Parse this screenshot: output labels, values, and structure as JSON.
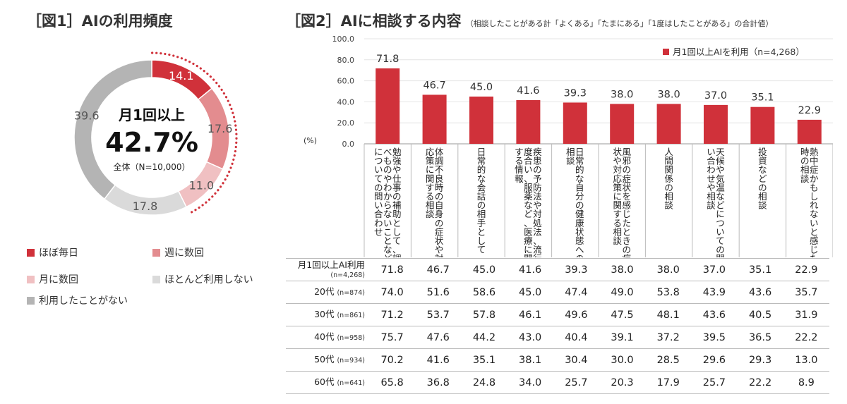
{
  "figure1": {
    "title": "［図1］AIの利用頻度",
    "center_line1": "月1回以上",
    "center_value": "42.7%",
    "center_note": "全体（N=10,000）",
    "legend": [
      {
        "label": "ほぼ毎日",
        "color": "#d0313a"
      },
      {
        "label": "週に数回",
        "color": "#e38c8f"
      },
      {
        "label": "月に数回",
        "color": "#f0c0c2"
      },
      {
        "label": "ほとんど利用しない",
        "color": "#dadada"
      },
      {
        "label": "利用したことがない",
        "color": "#b4b4b4"
      }
    ]
  },
  "figure2": {
    "title": "［図2］AIに相談する内容",
    "note": "（相談したことがある計「よくある」「たまにある」「1度はしたことがある」の合計値）",
    "legend_label": "月1回以上AIを利用（n=4,268）",
    "unit_label": "(%)",
    "bar_color": "#d0313a"
  },
  "chart_data": [
    {
      "type": "pie",
      "labels": [
        "ほぼ毎日",
        "週に数回",
        "月に数回",
        "ほとんど利用しない",
        "利用したことがない"
      ],
      "values": [
        14.1,
        17.6,
        11.0,
        17.8,
        39.6
      ],
      "colors": [
        "#d0313a",
        "#e38c8f",
        "#f0c0c2",
        "#dadada",
        "#b4b4b4"
      ],
      "donut": true,
      "legend_position": "bottom"
    },
    {
      "type": "bar",
      "categories": [
        "勉強や仕事の補助として、調べものやわからないことなどについての問い合わせ",
        "体調不良時の自身の症状や対応策に関する相談",
        "日常的な会話の相手として",
        "疾患の予防法や対処法、流行度合い、服薬など、医療に関する情報",
        "日常的な自分の健康状態への相談",
        "風邪の症状を感じたときの症状や対応策に関する相談",
        "人間関係の相談",
        "天候や気温などについての問い合わせや相談",
        "投資などの相談",
        "熱中症かもしれないと感じた時の相談"
      ],
      "series": [
        {
          "name": "月1回以上AIを利用（n=4,268）",
          "values": [
            71.8,
            46.7,
            45.0,
            41.6,
            39.3,
            38.0,
            38.0,
            37.0,
            35.1,
            22.9
          ]
        }
      ],
      "ylim": [
        0,
        100
      ],
      "yticks": [
        "0.0",
        "20.0",
        "40.0",
        "60.0",
        "80.0",
        "100.0"
      ],
      "ylabel": "(%)",
      "legend_position": "top-right"
    },
    {
      "type": "table",
      "rows": [
        {
          "label": "月1回以上AI利用",
          "n": "(n=4,268)",
          "values": [
            "71.8",
            "46.7",
            "45.0",
            "41.6",
            "39.3",
            "38.0",
            "38.0",
            "37.0",
            "35.1",
            "22.9"
          ]
        },
        {
          "label": "20代",
          "n": "(n=874)",
          "values": [
            "74.0",
            "51.6",
            "58.6",
            "45.0",
            "47.4",
            "49.0",
            "53.8",
            "43.9",
            "43.6",
            "35.7"
          ]
        },
        {
          "label": "30代",
          "n": "(n=861)",
          "values": [
            "71.2",
            "53.7",
            "57.8",
            "46.1",
            "49.6",
            "47.5",
            "48.1",
            "43.6",
            "40.5",
            "31.9"
          ]
        },
        {
          "label": "40代",
          "n": "(n=958)",
          "values": [
            "75.7",
            "47.6",
            "44.2",
            "43.0",
            "40.4",
            "39.1",
            "37.2",
            "39.5",
            "36.5",
            "22.2"
          ]
        },
        {
          "label": "50代",
          "n": "(n=934)",
          "values": [
            "70.2",
            "41.6",
            "35.1",
            "38.1",
            "30.4",
            "30.0",
            "28.5",
            "29.6",
            "29.3",
            "13.0"
          ]
        },
        {
          "label": "60代",
          "n": "(n=641)",
          "values": [
            "65.8",
            "36.8",
            "24.8",
            "34.0",
            "25.7",
            "20.3",
            "17.9",
            "25.7",
            "22.2",
            "8.9"
          ]
        }
      ]
    }
  ]
}
